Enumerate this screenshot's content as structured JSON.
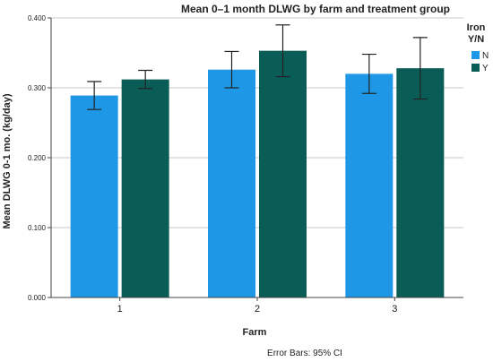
{
  "chart_data": {
    "type": "bar",
    "title": "Mean 0–1 month DLWG by farm and treatment group",
    "xlabel": "Farm",
    "ylabel": "Mean DLWG 0-1 mo. (kg/day)",
    "categories": [
      "1",
      "2",
      "3"
    ],
    "ylim": [
      0,
      0.4
    ],
    "yticks": [
      "0.000",
      "0.100",
      "0.200",
      "0.300",
      "0.400"
    ],
    "grid": "horizontal",
    "legend": {
      "title": "Iron Y/N",
      "title_lines": [
        "Iron",
        "Y/N"
      ],
      "placement": "right"
    },
    "series": [
      {
        "name": "N",
        "color": "#1e98e6",
        "values": [
          0.289,
          0.326,
          0.32
        ],
        "ci_low": [
          0.269,
          0.3,
          0.292
        ],
        "ci_high": [
          0.309,
          0.352,
          0.348
        ]
      },
      {
        "name": "Y",
        "color": "#0a5d57",
        "values": [
          0.312,
          0.353,
          0.328
        ],
        "ci_low": [
          0.299,
          0.316,
          0.284
        ],
        "ci_high": [
          0.325,
          0.39,
          0.372
        ]
      }
    ],
    "footnote": "Error Bars: 95% CI"
  }
}
